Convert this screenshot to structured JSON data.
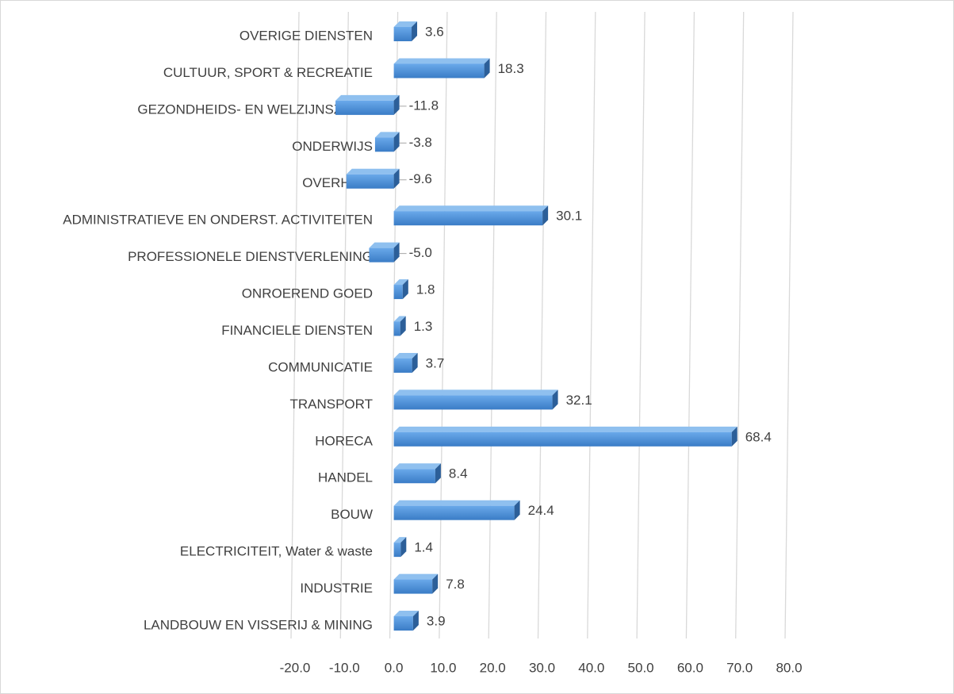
{
  "chart_data": {
    "type": "bar",
    "orientation": "horizontal",
    "categories": [
      "OVERIGE DIENSTEN",
      "CULTUUR, SPORT & RECREATIE",
      "GEZONDHEIDS- EN WELZIJNSZORG",
      "ONDERWIJS",
      "OVERHEID",
      "ADMINISTRATIEVE EN ONDERST. ACTIVITEITEN",
      "PROFESSIONELE DIENSTVERLENING",
      "ONROEREND GOED",
      "FINANCIELE DIENSTEN",
      "COMMUNICATIE",
      "TRANSPORT",
      "HORECA",
      "HANDEL",
      "BOUW",
      "ELECTRICITEIT, Water & waste",
      "INDUSTRIE",
      "LANDBOUW EN VISSERIJ & MINING"
    ],
    "values": [
      3.6,
      18.3,
      -11.8,
      -3.8,
      -9.6,
      30.1,
      -5,
      1.8,
      1.3,
      3.7,
      32.1,
      68.4,
      8.4,
      24.4,
      1.4,
      7.8,
      3.9
    ],
    "value_labels": [
      "3.6",
      "18.3",
      "-11.8",
      "-3.8",
      "-9.6",
      "30.1",
      "-5.0",
      "1.8",
      "1.3",
      "3.7",
      "32.1",
      "68.4",
      "8.4",
      "24.4",
      "1.4",
      "7.8",
      "3.9"
    ],
    "color": "#4a8fd8",
    "xlim": [
      -20,
      80
    ],
    "xticks": [
      {
        "value": -20,
        "label": "-20.0"
      },
      {
        "value": -10,
        "label": "-10.0"
      },
      {
        "value": 0,
        "label": "0.0"
      },
      {
        "value": 10,
        "label": "10.0"
      },
      {
        "value": 20,
        "label": "20.0"
      },
      {
        "value": 30,
        "label": "30.0"
      },
      {
        "value": 40,
        "label": "40.0"
      },
      {
        "value": 50,
        "label": "50.0"
      },
      {
        "value": 60,
        "label": "60.0"
      },
      {
        "value": 70,
        "label": "70.0"
      },
      {
        "value": 80,
        "label": "80.0"
      }
    ],
    "grid": true
  }
}
